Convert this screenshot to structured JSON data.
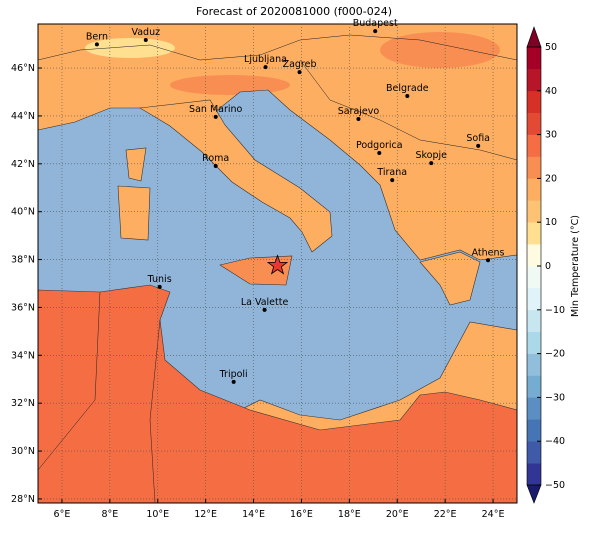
{
  "map": {
    "title": "Forecast of 2020081000 (f000-024)",
    "lonlim": [
      5,
      25
    ],
    "latlim": [
      27.83,
      47.84
    ],
    "xticks": [
      {
        "value": 6,
        "label": "6°E"
      },
      {
        "value": 8,
        "label": "8°E"
      },
      {
        "value": 10,
        "label": "10°E"
      },
      {
        "value": 12,
        "label": "12°E"
      },
      {
        "value": 14,
        "label": "14°E"
      },
      {
        "value": 16,
        "label": "16°E"
      },
      {
        "value": 18,
        "label": "18°E"
      },
      {
        "value": 20,
        "label": "20°E"
      },
      {
        "value": 22,
        "label": "22°E"
      },
      {
        "value": 24,
        "label": "24°E"
      }
    ],
    "yticks": [
      {
        "value": 28,
        "label": "28°N"
      },
      {
        "value": 30,
        "label": "30°N"
      },
      {
        "value": 32,
        "label": "32°N"
      },
      {
        "value": 34,
        "label": "34°N"
      },
      {
        "value": 36,
        "label": "36°N"
      },
      {
        "value": 38,
        "label": "38°N"
      },
      {
        "value": 40,
        "label": "40°N"
      },
      {
        "value": 42,
        "label": "42°N"
      },
      {
        "value": 44,
        "label": "44°N"
      },
      {
        "value": 46,
        "label": "46°N"
      }
    ],
    "grid": true,
    "cities": [
      {
        "name": "Bern",
        "lon": 7.46,
        "lat": 46.99
      },
      {
        "name": "Vaduz",
        "lon": 9.5,
        "lat": 47.17
      },
      {
        "name": "Budapest",
        "lon": 19.08,
        "lat": 47.54
      },
      {
        "name": "Ljubljana",
        "lon": 14.5,
        "lat": 46.04
      },
      {
        "name": "Zagreb",
        "lon": 15.92,
        "lat": 45.83
      },
      {
        "name": "Belgrade",
        "lon": 20.42,
        "lat": 44.83
      },
      {
        "name": "San Marino",
        "lon": 12.42,
        "lat": 43.96
      },
      {
        "name": "Sarajevo",
        "lon": 18.38,
        "lat": 43.87
      },
      {
        "name": "Sofia",
        "lon": 23.38,
        "lat": 42.75
      },
      {
        "name": "Roma",
        "lon": 12.42,
        "lat": 41.91
      },
      {
        "name": "Podgorica",
        "lon": 19.25,
        "lat": 42.45
      },
      {
        "name": "Skopje",
        "lon": 21.42,
        "lat": 42.03
      },
      {
        "name": "Tirana",
        "lon": 19.79,
        "lat": 41.32
      },
      {
        "name": "Athens",
        "lon": 23.79,
        "lat": 37.97
      },
      {
        "name": "Tunis",
        "lon": 10.08,
        "lat": 36.86
      },
      {
        "name": "La Valette",
        "lon": 14.46,
        "lat": 35.9
      },
      {
        "name": "Tripoli",
        "lon": 13.17,
        "lat": 32.89
      }
    ],
    "marker": {
      "lon": 15.0,
      "lat": 37.75,
      "color": "#e8392b"
    },
    "colorbar": {
      "label": "Min Temperature (°C)",
      "lim": [
        -50,
        50
      ],
      "ticks": [
        {
          "value": -50,
          "label": "−50"
        },
        {
          "value": -40,
          "label": "−40"
        },
        {
          "value": -30,
          "label": "−30"
        },
        {
          "value": -20,
          "label": "−20"
        },
        {
          "value": -10,
          "label": "−10"
        },
        0,
        10,
        20,
        30,
        40,
        50
      ],
      "colors": [
        "#313695",
        "#3f5aa8",
        "#4575b4",
        "#5b8fc3",
        "#74add1",
        "#91bfdb",
        "#abd9e9",
        "#c7e6f0",
        "#e0f3f8",
        "#f0f9f4",
        "#fffbe0",
        "#fee090",
        "#fdc274",
        "#fdae61",
        "#f98e52",
        "#f46d43",
        "#e34a33",
        "#d73027",
        "#b81628",
        "#a50026"
      ]
    }
  }
}
